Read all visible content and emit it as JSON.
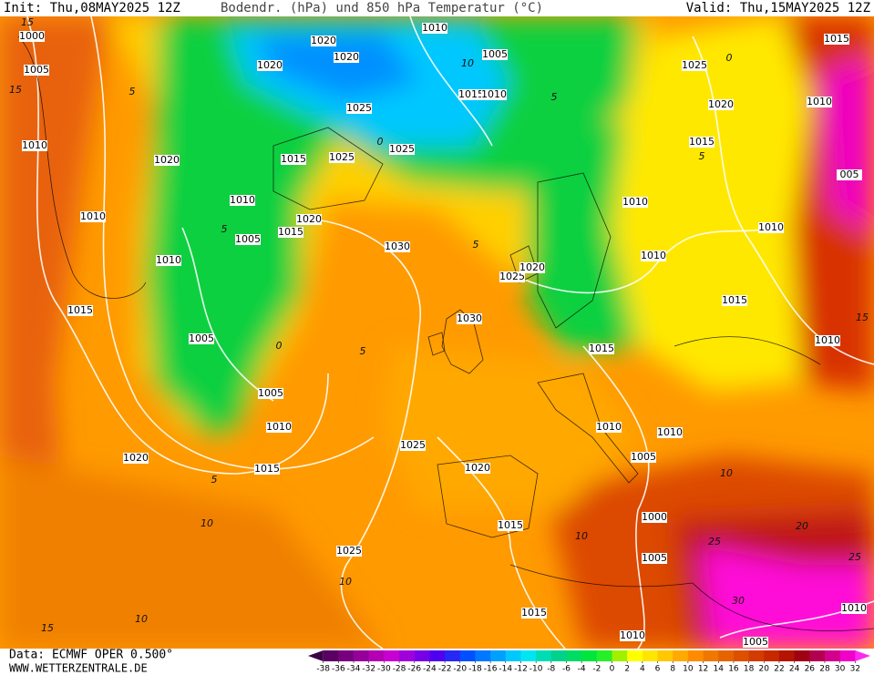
{
  "header": {
    "init": "Init: Thu,08MAY2025 12Z",
    "title": "Bodendr. (hPa) und 850 hPa Temperatur (°C)",
    "valid": "Valid: Thu,15MAY2025 12Z"
  },
  "footer": {
    "source": "Data: ECMWF OPER 0.500°",
    "site": "WWW.WETTERZENTRALE.DE"
  },
  "isobar_labels": [
    "1000",
    "1005",
    "1010",
    "1010",
    "1010",
    "1015",
    "1020",
    "1020",
    "1020",
    "1020",
    "1010",
    "1005",
    "1015",
    "1010",
    "1025",
    "1025",
    "1015",
    "1025",
    "1010",
    "1020",
    "1005",
    "1015",
    "1030",
    "1025",
    "1020",
    "1030",
    "1005",
    "1005",
    "1010",
    "1025",
    "1020",
    "1015",
    "1020",
    "1015",
    "1025",
    "1015",
    "1010",
    "1005",
    "1010",
    "1005",
    "1000",
    "1005",
    "1010",
    "1010",
    "1015",
    "1015",
    "1010",
    "1010",
    "1010",
    "1015",
    "1020",
    "1025",
    "1015",
    "1010",
    "005",
    "1010"
  ],
  "temperature_labels": [
    "15",
    "15",
    "5",
    "5",
    "0",
    "5",
    "10",
    "10",
    "15",
    "10",
    "5",
    "10",
    "10",
    "20",
    "25",
    "25",
    "30",
    "5",
    "0",
    "5",
    "10",
    "0",
    "5",
    "15"
  ],
  "colorbar": {
    "ticks": [
      -38,
      -36,
      -34,
      -32,
      -30,
      -28,
      -26,
      -24,
      -22,
      -20,
      -18,
      -16,
      -14,
      -12,
      -10,
      -8,
      -6,
      -4,
      -2,
      0,
      2,
      4,
      6,
      8,
      10,
      12,
      14,
      16,
      18,
      20,
      22,
      24,
      26,
      28,
      30,
      32
    ],
    "colors": [
      "#3c0046",
      "#5a0064",
      "#78007f",
      "#96009a",
      "#b400b4",
      "#c800d2",
      "#a000dc",
      "#7800e6",
      "#5000f0",
      "#2828f5",
      "#0050ff",
      "#0078ff",
      "#00a0ff",
      "#00c8ff",
      "#00e6f0",
      "#00dcb4",
      "#00d28c",
      "#00dc64",
      "#00e63c",
      "#28f028",
      "#a0f000",
      "#ffff00",
      "#ffe600",
      "#ffc800",
      "#ffaa00",
      "#ff8c00",
      "#f07800",
      "#e66400",
      "#dc5000",
      "#d23c00",
      "#c82800",
      "#b41400",
      "#a00014",
      "#b40050",
      "#d2008c",
      "#f000c8",
      "#ff28f0"
    ]
  }
}
